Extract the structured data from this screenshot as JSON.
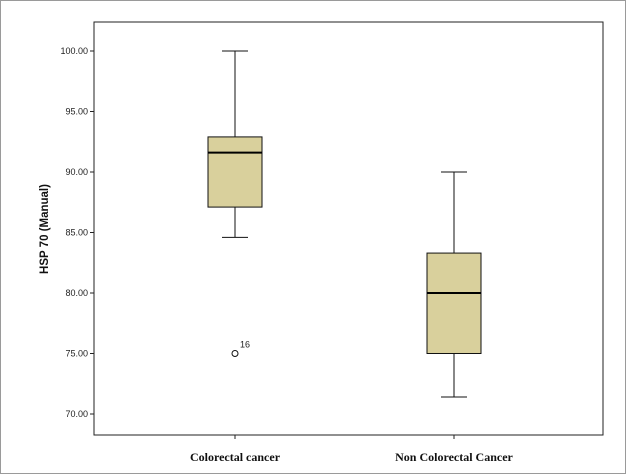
{
  "chart_data": {
    "type": "box",
    "title": "",
    "xlabel": "",
    "ylabel": "HSP 70 (Manual)",
    "ylim": [
      69.0,
      102.5
    ],
    "yticks": [
      "70.00",
      "75.00",
      "80.00",
      "85.00",
      "90.00",
      "95.00",
      "100.00"
    ],
    "grid": false,
    "box_color": "#d9d09c",
    "categories": [
      "Colorectal cancer",
      "Non Colorectal Cancer"
    ],
    "boxes": [
      {
        "name": "Colorectal cancer",
        "whisker_low": 84.6,
        "q1": 87.1,
        "median": 91.6,
        "q3": 92.9,
        "whisker_high": 100.0,
        "outliers": [
          {
            "value": 75.0,
            "label": "16"
          }
        ]
      },
      {
        "name": "Non Colorectal Cancer",
        "whisker_low": 71.4,
        "q1": 75.0,
        "median": 80.0,
        "q3": 83.3,
        "whisker_high": 90.0,
        "outliers": []
      }
    ]
  }
}
